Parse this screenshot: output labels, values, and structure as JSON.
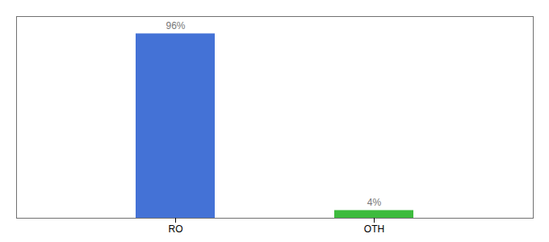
{
  "chart_data": {
    "type": "bar",
    "categories": [
      "RO",
      "OTH"
    ],
    "values": [
      96,
      4
    ],
    "value_labels": [
      "96%",
      "4%"
    ],
    "colors": [
      "#4472d6",
      "#3dbb3d"
    ],
    "ylim": [
      0,
      105
    ],
    "tick_labels": "x",
    "data_labels": true
  }
}
